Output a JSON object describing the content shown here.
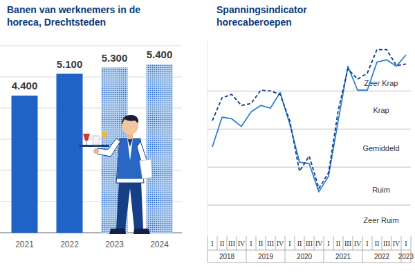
{
  "chart_data": [
    {
      "type": "bar",
      "title": "Banen van werknemers in de horeca, Drechtsteden",
      "categories": [
        "2021",
        "2022",
        "2023",
        "2024"
      ],
      "values": [
        4400,
        5100,
        5300,
        5400
      ],
      "value_labels": [
        "4.400",
        "5.100",
        "5.300",
        "5.400"
      ],
      "color": "#1f63c6",
      "colors": [
        "#1f63c6",
        "#1f63c6",
        "#b9d3f0",
        "#b9d3f0"
      ],
      "ylim": [
        0,
        6000
      ],
      "yticks": [
        0,
        1000,
        2000,
        3000,
        4000,
        5000,
        6000
      ],
      "grid": true,
      "data_labels": true,
      "tick_labels": "x"
    },
    {
      "type": "line",
      "title": "Spanningsindicator horecaberoepen",
      "categories": [
        "I",
        "II",
        "III",
        "IV",
        "I",
        "II",
        "III",
        "IV",
        "I",
        "II",
        "III",
        "IV",
        "I",
        "II",
        "III",
        "IV",
        "I",
        "II",
        "III",
        "IV",
        "I"
      ],
      "years": [
        "2018",
        "2019",
        "2020",
        "2021",
        "2022",
        "2023"
      ],
      "series": [
        {
          "color": "#2e80d2",
          "line_style": "solid",
          "values": [
            0.03,
            0.81,
            0.77,
            0.57,
            0.95,
            1.12,
            1.05,
            1.46,
            0.63,
            -0.37,
            -0.41,
            -1.15,
            -0.74,
            0.72,
            2.15,
            1.52,
            1.52,
            2.26,
            2.32,
            2.15,
            2.45
          ]
        },
        {
          "color": "#0e3a86",
          "line_style": "dashed",
          "values": [
            0.72,
            1.32,
            1.41,
            1.12,
            1.17,
            1.52,
            1.5,
            1.41,
            0.72,
            -0.61,
            -0.21,
            -1.06,
            -0.65,
            0.99,
            2.08,
            1.81,
            1.97,
            2.59,
            2.59,
            2.17,
            2.21
          ]
        }
      ],
      "ylim": [
        -2.3,
        2.8
      ],
      "yticks": [
        -1.5,
        -0.5,
        0.5,
        1.5
      ],
      "grid": true,
      "tick_labels": "x",
      "annotations": [
        {
          "text": "Zeer Krap",
          "y": 1.7
        },
        {
          "text": "Krap",
          "y": 1
        },
        {
          "text": "Gemiddeld",
          "y": 0
        },
        {
          "text": "Ruim",
          "y": -1.1
        },
        {
          "text": "Zeer Ruim",
          "y": -1.9
        }
      ]
    }
  ]
}
